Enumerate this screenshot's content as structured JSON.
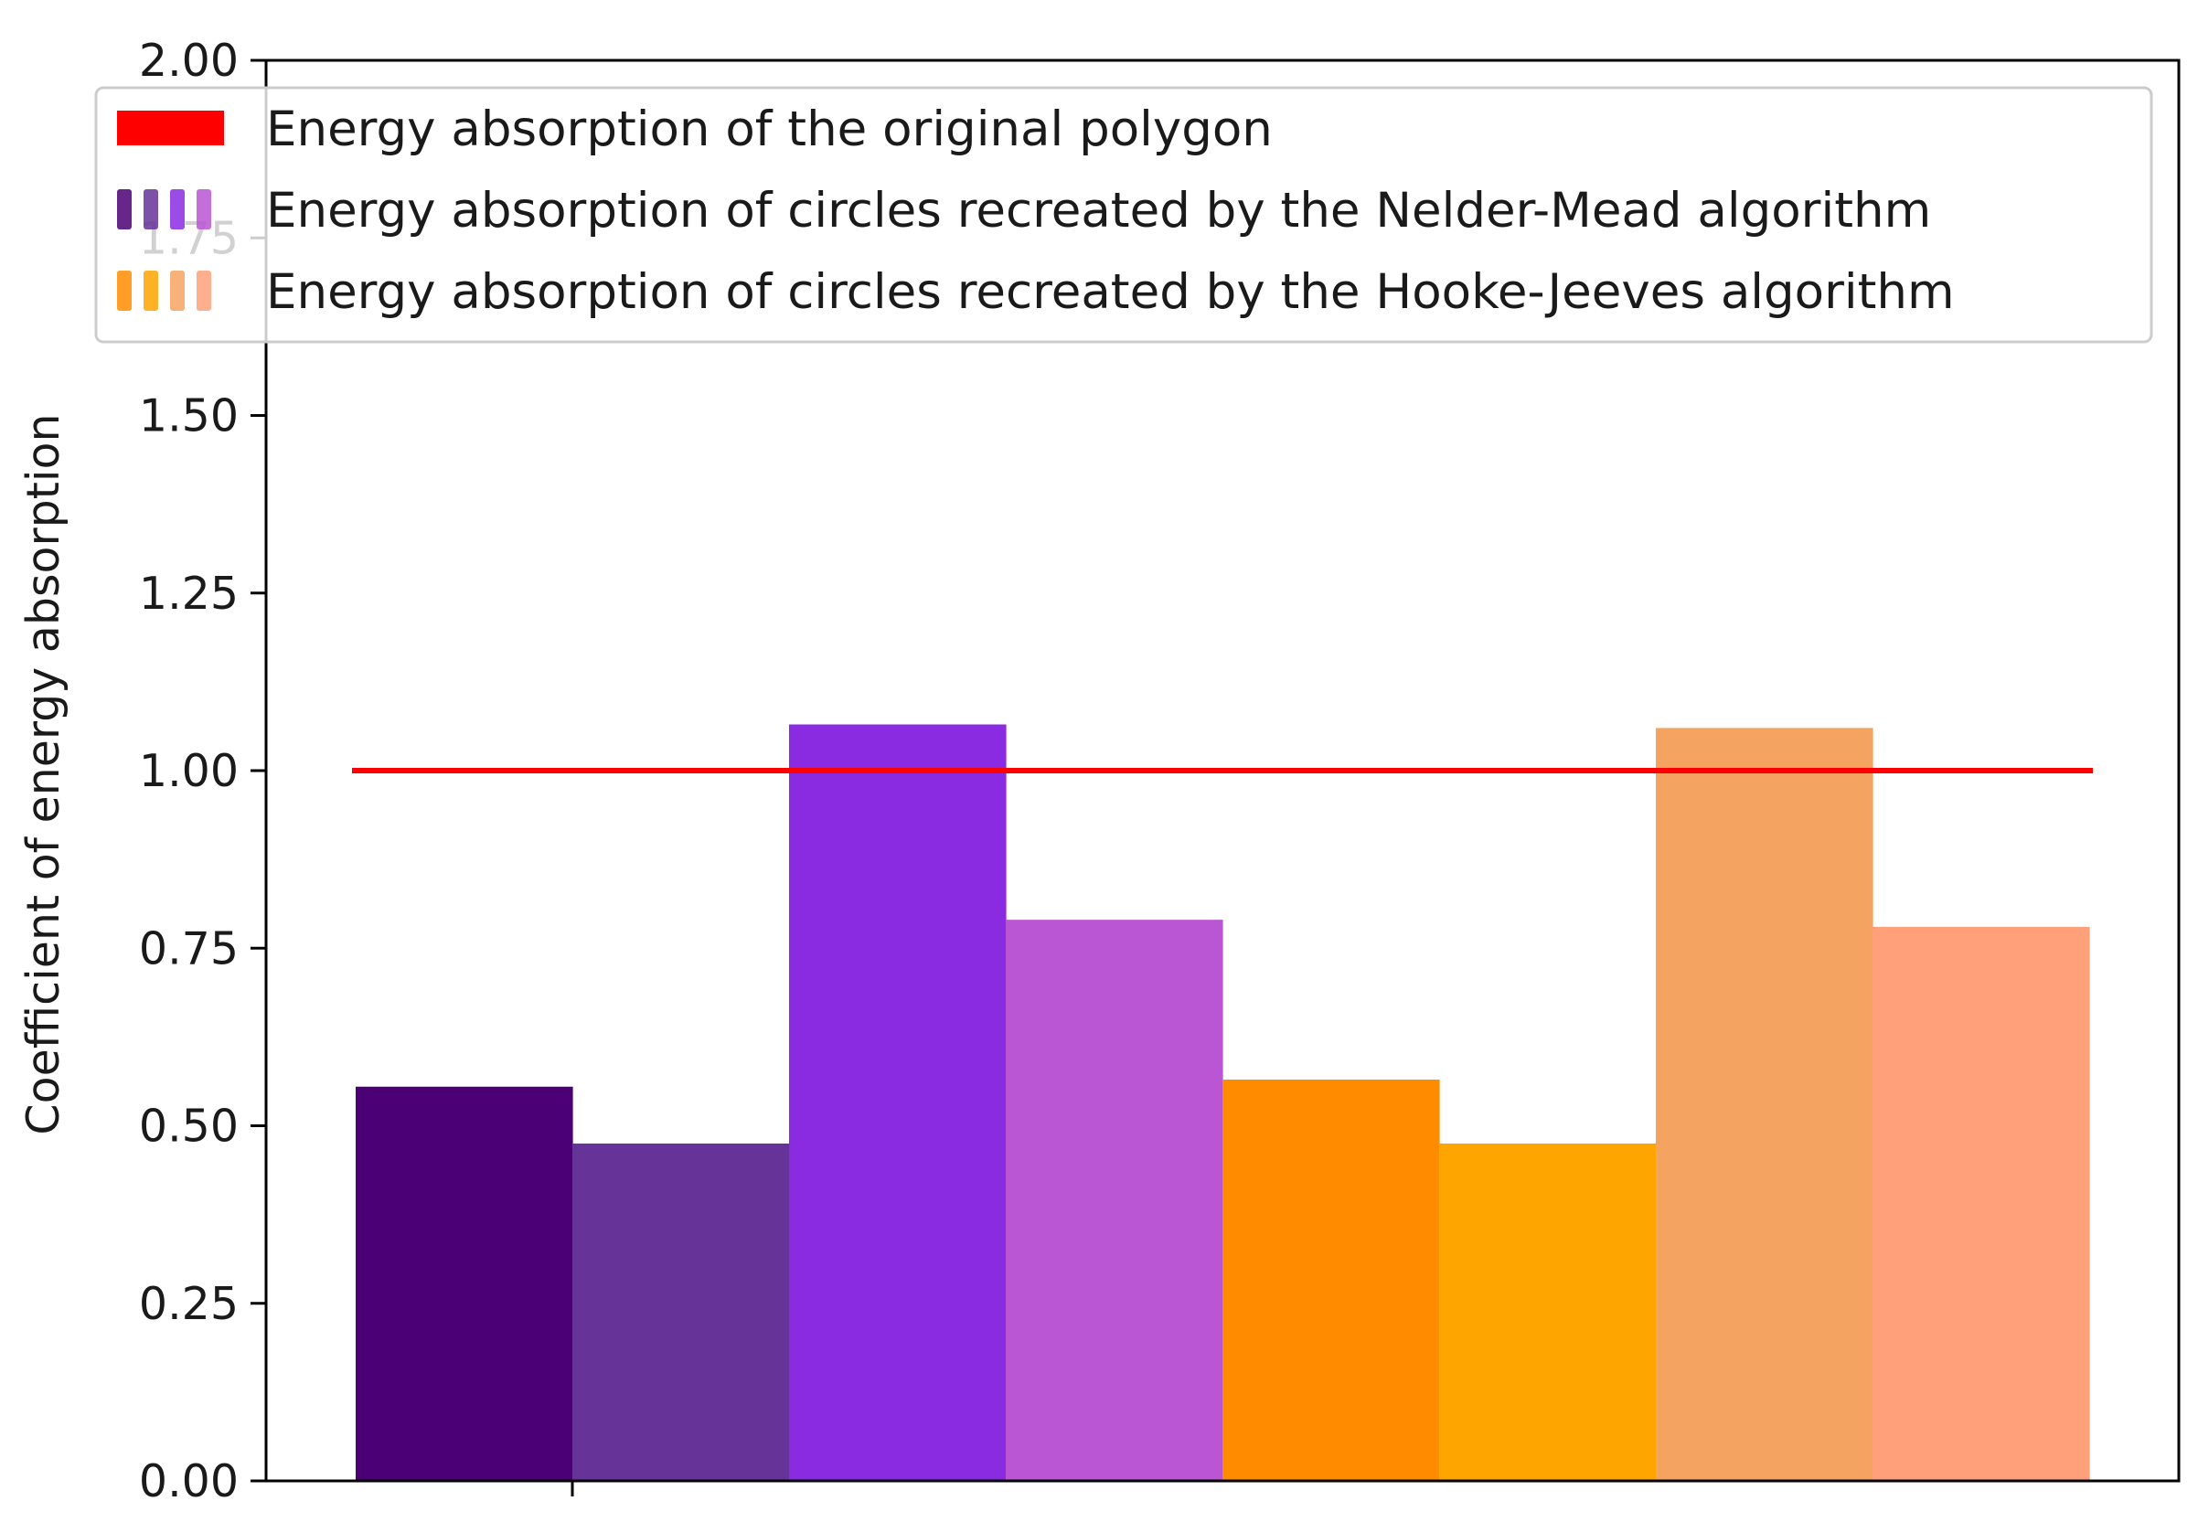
{
  "chart_data": {
    "type": "bar",
    "title": "",
    "xlabel": "",
    "ylabel": "Coefficient of energy absorption",
    "ylim": [
      0,
      2.0
    ],
    "y_ticks": [
      "0.00",
      "0.25",
      "0.50",
      "0.75",
      "1.00",
      "1.25",
      "1.50",
      "1.75",
      "2.00"
    ],
    "x_ticks": [
      ""
    ],
    "grid": false,
    "legend_position": "top",
    "bars": [
      {
        "group": "Nelder-Mead",
        "value": 0.555,
        "color": "#4b0076"
      },
      {
        "group": "Nelder-Mead",
        "value": 0.475,
        "color": "#663399"
      },
      {
        "group": "Nelder-Mead",
        "value": 1.065,
        "color": "#8a2be2"
      },
      {
        "group": "Nelder-Mead",
        "value": 0.79,
        "color": "#ba55d3"
      },
      {
        "group": "Hooke-Jeeves",
        "value": 0.565,
        "color": "#ff8c00"
      },
      {
        "group": "Hooke-Jeeves",
        "value": 0.475,
        "color": "#ffa500"
      },
      {
        "group": "Hooke-Jeeves",
        "value": 1.06,
        "color": "#f4a460"
      },
      {
        "group": "Hooke-Jeeves",
        "value": 0.78,
        "color": "#ffa07a"
      }
    ],
    "reference_line": {
      "value": 1.0,
      "color": "#ff0000"
    },
    "legend": [
      {
        "label": "Energy absorption of the original polygon",
        "kind": "line",
        "colors": [
          "#ff0000"
        ]
      },
      {
        "label": "Energy absorption of circles recreated by the Nelder-Mead algorithm",
        "kind": "bars",
        "colors": [
          "#4b0076",
          "#663399",
          "#8a2be2",
          "#ba55d3"
        ]
      },
      {
        "label": "Energy absorption of circles recreated by the Hooke-Jeeves algorithm",
        "kind": "bars",
        "colors": [
          "#ff8c00",
          "#ffa500",
          "#f4a460",
          "#ffa07a"
        ]
      }
    ]
  }
}
